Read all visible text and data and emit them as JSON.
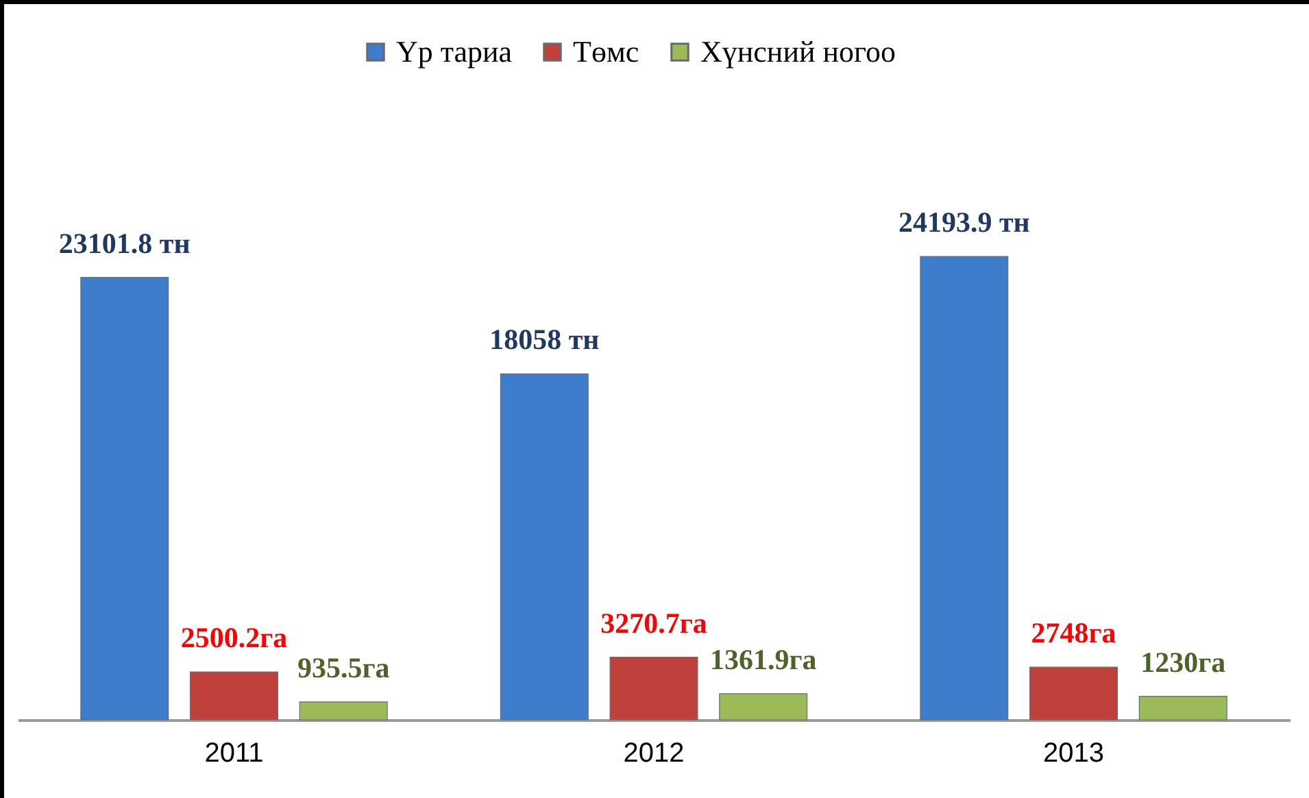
{
  "chart_data": {
    "type": "bar",
    "categories": [
      "2011",
      "2012",
      "2013"
    ],
    "legend": "top",
    "series": [
      {
        "name": "Үр тариа",
        "color": "#3e7ccc",
        "values": [
          23101.8,
          18058,
          24193.9
        ],
        "value_labels": [
          "23101.8 тн",
          "18058 тн",
          "24193.9 тн"
        ]
      },
      {
        "name": "Төмс",
        "color": "#c0413c",
        "values": [
          2500.2,
          3270.7,
          2748
        ],
        "value_labels": [
          "2500.2га",
          "3270.7га",
          "2748га"
        ]
      },
      {
        "name": "Хүнсний ногоо",
        "color": "#9bbb59",
        "values": [
          935.5,
          1361.9,
          1230
        ],
        "value_labels": [
          "935.5га",
          "1361.9га",
          "1230га"
        ]
      }
    ]
  }
}
